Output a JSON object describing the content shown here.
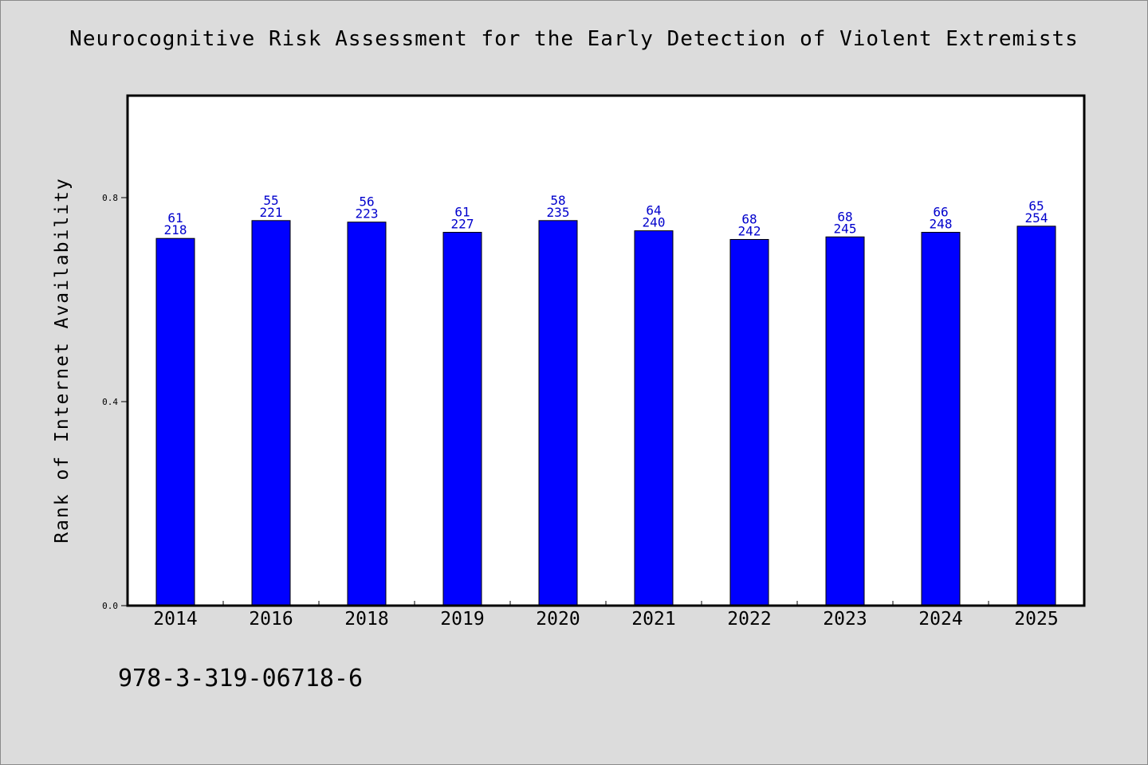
{
  "chart_data": {
    "type": "bar",
    "title": "Neurocognitive Risk Assessment for the Early Detection of Violent Extremists",
    "xlabel": "",
    "ylabel": "Rank of Internet Availability",
    "ylim": [
      0,
      1.0
    ],
    "yticks": [
      "0.0",
      "0.4",
      "0.8"
    ],
    "grid": false,
    "categories": [
      "2014",
      "2016",
      "2018",
      "2019",
      "2020",
      "2021",
      "2022",
      "2023",
      "2024",
      "2025"
    ],
    "values": [
      0.72,
      0.755,
      0.752,
      0.732,
      0.755,
      0.735,
      0.718,
      0.723,
      0.732,
      0.744
    ],
    "bar_labels_top": [
      "61",
      "55",
      "56",
      "61",
      "58",
      "64",
      "68",
      "68",
      "66",
      "65"
    ],
    "bar_labels_bottom": [
      "218",
      "221",
      "223",
      "227",
      "235",
      "240",
      "242",
      "245",
      "248",
      "254"
    ],
    "colors": {
      "bar": "#0000ff",
      "bar_label": "#0000cc",
      "background": "#dcdcdc",
      "plot": "#ffffff"
    }
  },
  "footer": {
    "isbn": "978-3-319-06718-6"
  }
}
